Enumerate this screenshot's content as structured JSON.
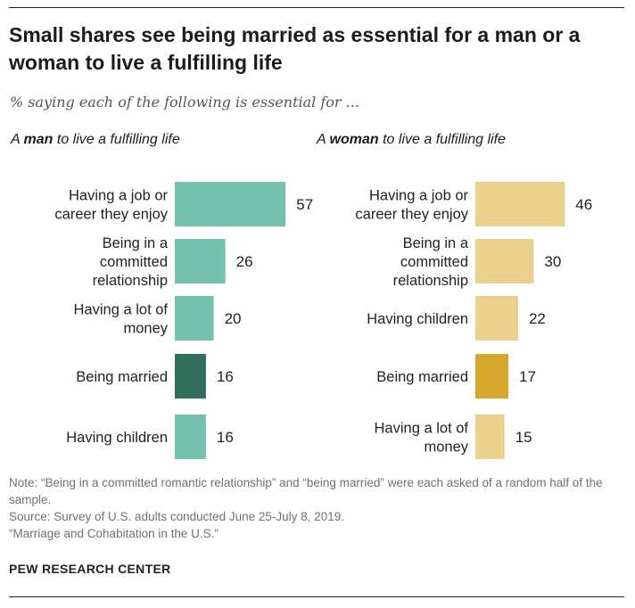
{
  "title": "Small shares see being married as essential for a man or a woman to live a fulfilling life",
  "subtitle": "% saying each of the following is essential for ...",
  "colors": {
    "man_bar": "#74c2ae",
    "man_highlight": "#2e6e5b",
    "woman_bar": "#ead08b",
    "woman_highlight": "#d7a82c"
  },
  "chart_data": [
    {
      "type": "bar",
      "orientation": "horizontal",
      "panel_title_prefix": "A ",
      "panel_title_bold": "man",
      "panel_title_suffix": " to live a fulfilling life",
      "categories": [
        [
          "Having a job or",
          "career they enjoy"
        ],
        [
          "Being in a",
          "committed",
          "relationship"
        ],
        [
          "Having a lot of",
          "money"
        ],
        [
          "Being married"
        ],
        [
          "Having children"
        ]
      ],
      "values": [
        57,
        26,
        20,
        16,
        16
      ],
      "highlight_index": 3
    },
    {
      "type": "bar",
      "orientation": "horizontal",
      "panel_title_prefix": "A ",
      "panel_title_bold": "woman",
      "panel_title_suffix": " to live a fulfilling life",
      "categories": [
        [
          "Having a job or",
          "career they enjoy"
        ],
        [
          "Being in a",
          "committed",
          "relationship"
        ],
        [
          "Having children"
        ],
        [
          "Being married"
        ],
        [
          "Having a lot of",
          "money"
        ]
      ],
      "values": [
        46,
        30,
        22,
        17,
        15
      ],
      "highlight_index": 3
    }
  ],
  "notes": [
    "Note: “Being in a committed romantic relationship” and “being married” were each asked of a random half of the sample.",
    "Source: Survey of U.S. adults conducted June 25-July 8, 2019.",
    "“Marriage and Cohabitation in the U.S.”"
  ],
  "logo_text": "PEW RESEARCH CENTER"
}
